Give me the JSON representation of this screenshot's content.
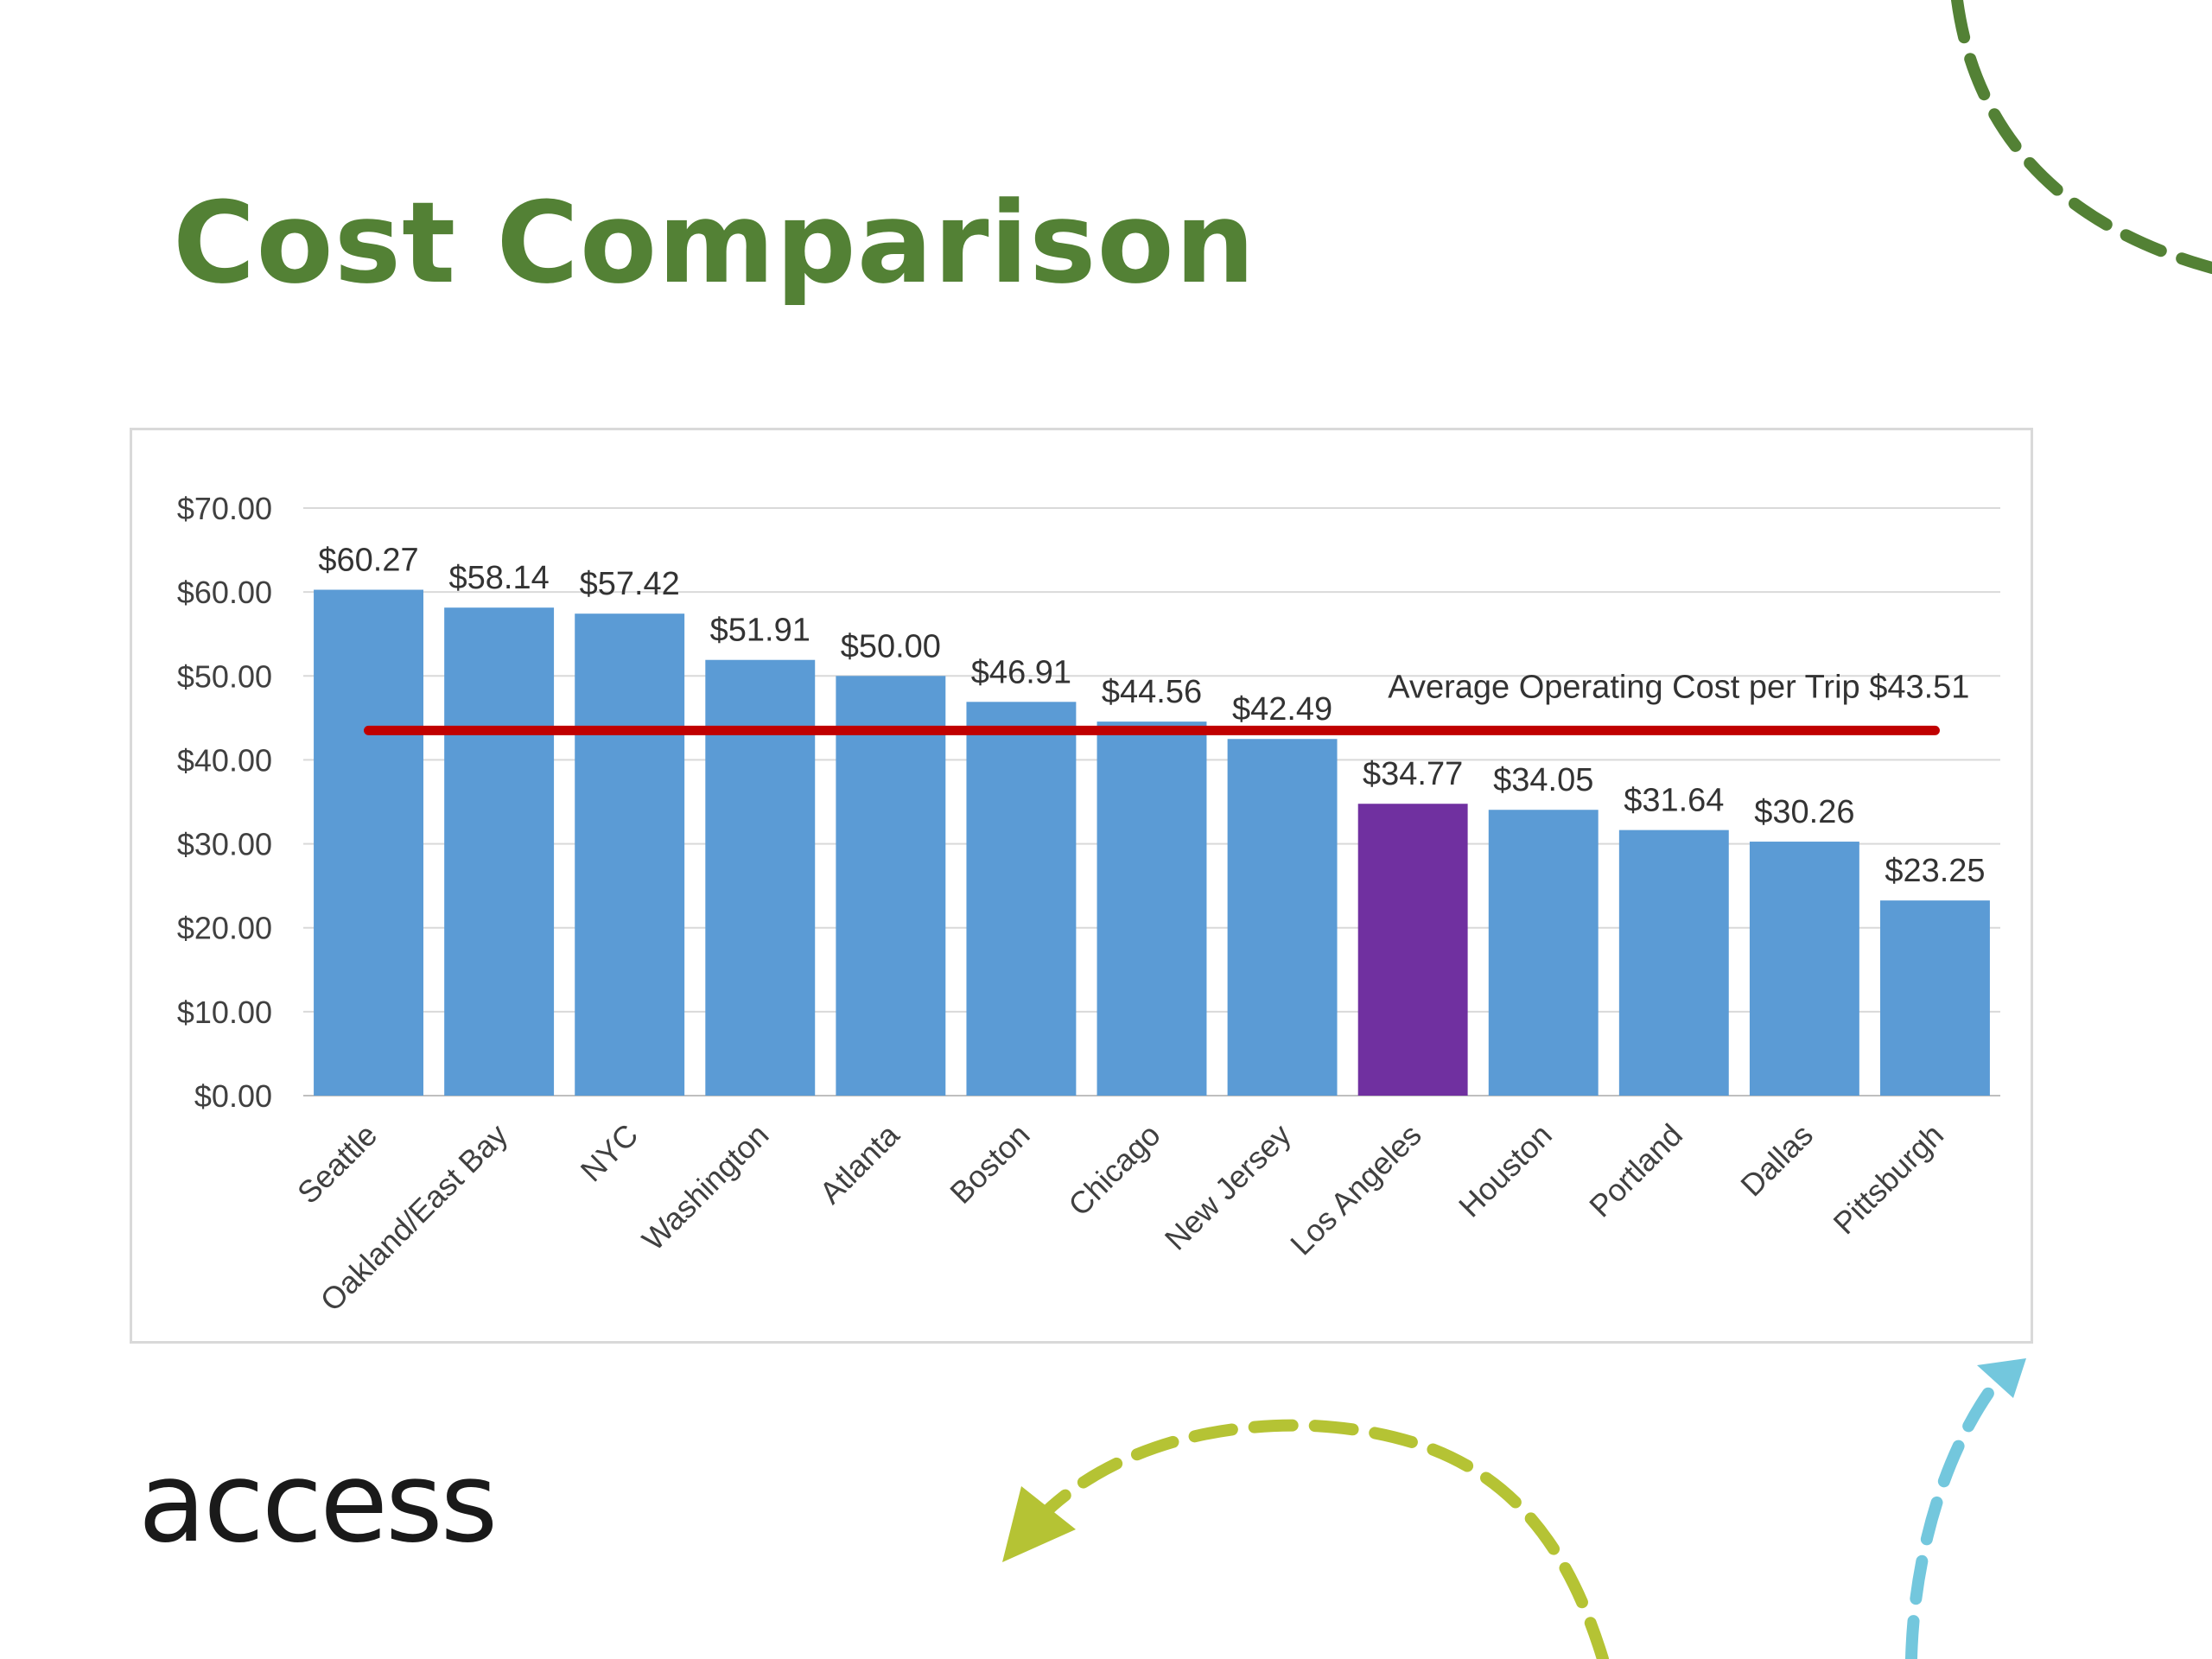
{
  "slide": {
    "title": "Cost Comparison",
    "logo_text": "access"
  },
  "colors": {
    "title": "#538135",
    "bar": "#5b9bd5",
    "highlight_bar": "#7030a0",
    "average_line": "#c00000",
    "deco_green": "#538135",
    "deco_lime": "#b5c334",
    "deco_blue": "#73c7dd"
  },
  "chart_data": {
    "type": "bar",
    "categories": [
      "Seattle",
      "Oakland/East Bay",
      "NYC",
      "Washington",
      "Atlanta",
      "Boston",
      "Chicago",
      "New Jersey",
      "Los Angeles",
      "Houston",
      "Portland",
      "Dallas",
      "Pittsburgh"
    ],
    "values": [
      60.27,
      58.14,
      57.42,
      51.91,
      50.0,
      46.91,
      44.56,
      42.49,
      34.77,
      34.05,
      31.64,
      30.26,
      23.25
    ],
    "value_labels": [
      "$60.27",
      "$58.14",
      "$57.42",
      "$51.91",
      "$50.00",
      "$46.91",
      "$44.56",
      "$42.49",
      "$34.77",
      "$34.05",
      "$31.64",
      "$30.26",
      "$23.25"
    ],
    "highlight_category": "Los Angeles",
    "ylim": [
      0,
      70
    ],
    "yticks": [
      0,
      10,
      20,
      30,
      40,
      50,
      60,
      70
    ],
    "ytick_labels": [
      "$0.00",
      "$10.00",
      "$20.00",
      "$30.00",
      "$40.00",
      "$50.00",
      "$60.00",
      "$70.00"
    ],
    "grid": true,
    "average": {
      "value": 43.51,
      "label": "Average Operating Cost per Trip $43.51"
    },
    "title": "",
    "xlabel": "",
    "ylabel": ""
  }
}
